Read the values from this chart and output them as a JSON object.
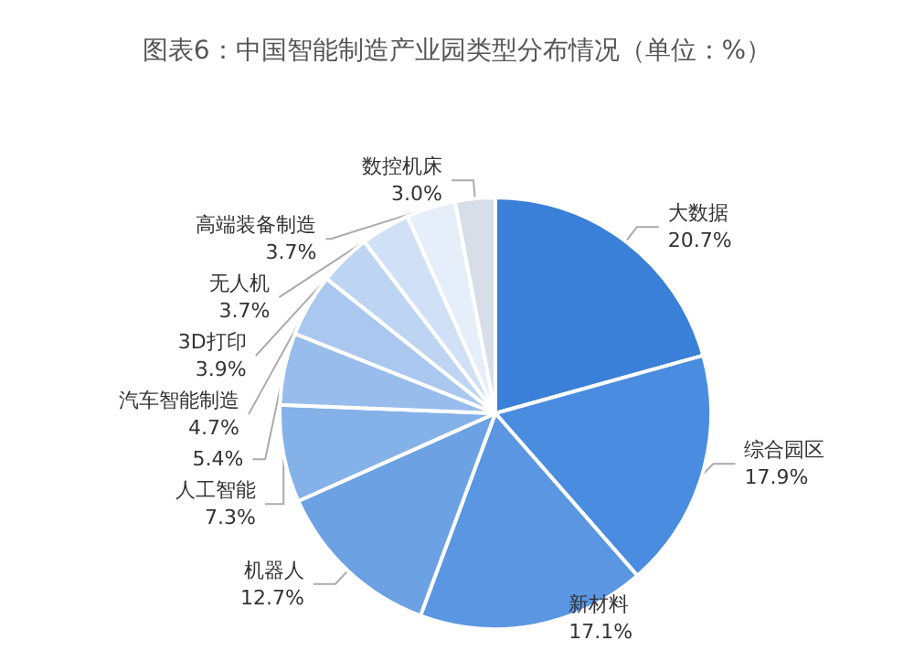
{
  "chart_data": {
    "type": "pie",
    "title": "图表6：中国智能制造产业园类型分布情况（单位：%）",
    "categories": [
      "大数据",
      "综合园区",
      "新材料",
      "机器人",
      "人工智能",
      null,
      "汽车智能制造",
      "3D打印",
      "无人机",
      "高端装备制造",
      "数控机床"
    ],
    "values": [
      20.7,
      17.9,
      17.1,
      12.7,
      7.3,
      5.4,
      4.7,
      3.9,
      3.7,
      3.7,
      3.0
    ],
    "value_labels": [
      "20.7%",
      "17.9%",
      "17.1%",
      "12.7%",
      "7.3%",
      "5.4%",
      "4.7%",
      "3.9%",
      "3.7%",
      "3.7%",
      "3.0%"
    ],
    "colors": [
      "#3a7fd8",
      "#4a8ce0",
      "#5a96e2",
      "#6ca1e4",
      "#85b1e9",
      "#98bdec",
      "#aac8ef",
      "#bdd4f2",
      "#d0e0f6",
      "#e6eef9",
      "#d7dee8"
    ],
    "legend": false
  }
}
